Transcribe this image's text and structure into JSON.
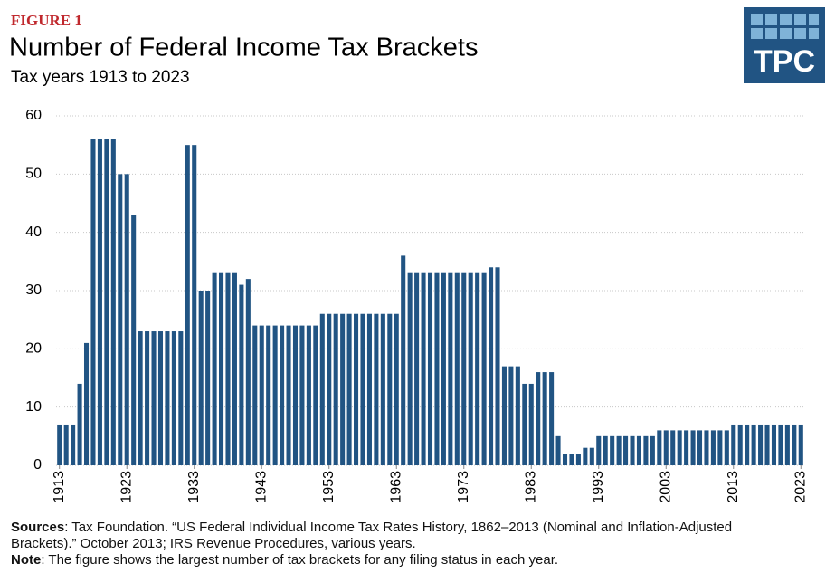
{
  "figure_label": "FIGURE 1",
  "logo": {
    "text": "TPC"
  },
  "chart_data": {
    "type": "bar",
    "title": "Number of Federal Income Tax Brackets",
    "subtitle": "Tax years 1913 to 2023",
    "color": "#215483",
    "grid": true,
    "x": [
      1913,
      1914,
      1915,
      1916,
      1917,
      1918,
      1919,
      1920,
      1921,
      1922,
      1923,
      1924,
      1925,
      1926,
      1927,
      1928,
      1929,
      1930,
      1931,
      1932,
      1933,
      1934,
      1935,
      1936,
      1937,
      1938,
      1939,
      1940,
      1941,
      1942,
      1943,
      1944,
      1945,
      1946,
      1947,
      1948,
      1949,
      1950,
      1951,
      1952,
      1953,
      1954,
      1955,
      1956,
      1957,
      1958,
      1959,
      1960,
      1961,
      1962,
      1963,
      1964,
      1965,
      1966,
      1967,
      1968,
      1969,
      1970,
      1971,
      1972,
      1973,
      1974,
      1975,
      1976,
      1977,
      1978,
      1979,
      1980,
      1981,
      1982,
      1983,
      1984,
      1985,
      1986,
      1987,
      1988,
      1989,
      1990,
      1991,
      1992,
      1993,
      1994,
      1995,
      1996,
      1997,
      1998,
      1999,
      2000,
      2001,
      2002,
      2003,
      2004,
      2005,
      2006,
      2007,
      2008,
      2009,
      2010,
      2011,
      2012,
      2013,
      2014,
      2015,
      2016,
      2017,
      2018,
      2019,
      2020,
      2021,
      2022,
      2023
    ],
    "values": [
      7,
      7,
      7,
      14,
      21,
      56,
      56,
      56,
      56,
      50,
      50,
      43,
      23,
      23,
      23,
      23,
      23,
      23,
      23,
      55,
      55,
      30,
      30,
      33,
      33,
      33,
      33,
      31,
      32,
      24,
      24,
      24,
      24,
      24,
      24,
      24,
      24,
      24,
      24,
      26,
      26,
      26,
      26,
      26,
      26,
      26,
      26,
      26,
      26,
      26,
      26,
      36,
      33,
      33,
      33,
      33,
      33,
      33,
      33,
      33,
      33,
      33,
      33,
      33,
      34,
      34,
      17,
      17,
      17,
      14,
      14,
      16,
      16,
      16,
      5,
      2,
      2,
      2,
      3,
      3,
      5,
      5,
      5,
      5,
      5,
      5,
      5,
      5,
      5,
      6,
      6,
      6,
      6,
      6,
      6,
      6,
      6,
      6,
      6,
      6,
      7,
      7,
      7,
      7,
      7,
      7,
      7,
      7,
      7,
      7,
      7
    ],
    "xlim": [
      1912.5,
      2023.5
    ],
    "xticks": [
      1913,
      1923,
      1933,
      1943,
      1953,
      1963,
      1973,
      1983,
      1993,
      2003,
      2013,
      2023
    ],
    "ylim": [
      0,
      60
    ],
    "yticks": [
      0,
      10,
      20,
      30,
      40,
      50,
      60
    ]
  },
  "footnote": {
    "sources_label": "Sources",
    "sources_text": ": Tax Foundation. “US Federal Individual Income Tax Rates History, 1862–2013 (Nominal and Inflation-Adjusted Brackets).” October 2013; IRS Revenue Procedures, various years.",
    "note_label": "Note",
    "note_text": ": The figure shows the largest number of tax brackets for any filing status in each year."
  }
}
